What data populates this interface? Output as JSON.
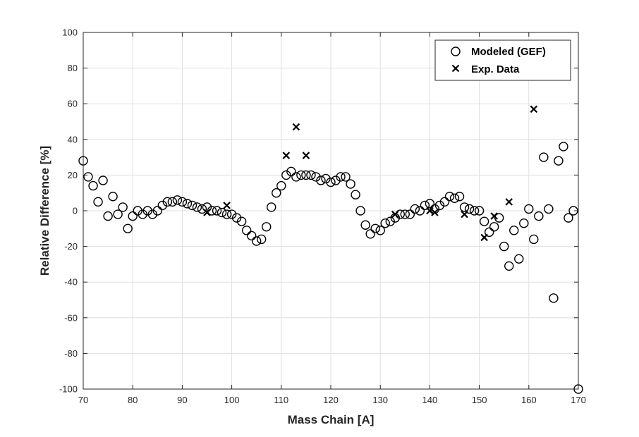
{
  "chart_data": {
    "type": "scatter",
    "title": "",
    "xlabel": "Mass Chain [A]",
    "ylabel": "Relative Difference [%]",
    "xlim": [
      70,
      170
    ],
    "ylim": [
      -100,
      100
    ],
    "xticks": [
      70,
      80,
      90,
      100,
      110,
      120,
      130,
      140,
      150,
      160,
      170
    ],
    "yticks": [
      100,
      80,
      60,
      40,
      20,
      0,
      -20,
      -40,
      -60,
      -80,
      -100
    ],
    "grid": true,
    "legend_position": "top-right",
    "series": [
      {
        "name": "Modeled (GEF)",
        "marker": "circle",
        "color": "#000000",
        "points": [
          [
            70,
            28
          ],
          [
            71,
            19
          ],
          [
            72,
            14
          ],
          [
            73,
            5
          ],
          [
            74,
            17
          ],
          [
            75,
            -3
          ],
          [
            76,
            8
          ],
          [
            77,
            -2
          ],
          [
            78,
            2
          ],
          [
            79,
            -10
          ],
          [
            80,
            -3
          ],
          [
            81,
            0
          ],
          [
            82,
            -2
          ],
          [
            83,
            0
          ],
          [
            84,
            -2
          ],
          [
            85,
            0
          ],
          [
            86,
            3
          ],
          [
            87,
            5
          ],
          [
            88,
            5
          ],
          [
            89,
            6
          ],
          [
            90,
            5
          ],
          [
            91,
            4
          ],
          [
            92,
            3
          ],
          [
            93,
            2
          ],
          [
            94,
            1
          ],
          [
            95,
            2
          ],
          [
            96,
            0
          ],
          [
            97,
            0
          ],
          [
            98,
            -1
          ],
          [
            99,
            -2
          ],
          [
            100,
            -2
          ],
          [
            101,
            -4
          ],
          [
            102,
            -6
          ],
          [
            103,
            -11
          ],
          [
            104,
            -14
          ],
          [
            105,
            -17
          ],
          [
            106,
            -16
          ],
          [
            107,
            -9
          ],
          [
            108,
            2
          ],
          [
            109,
            10
          ],
          [
            110,
            14
          ],
          [
            111,
            20
          ],
          [
            112,
            22
          ],
          [
            113,
            19
          ],
          [
            114,
            20
          ],
          [
            115,
            20
          ],
          [
            116,
            20
          ],
          [
            117,
            19
          ],
          [
            118,
            17
          ],
          [
            119,
            18
          ],
          [
            120,
            16
          ],
          [
            121,
            17
          ],
          [
            122,
            19
          ],
          [
            123,
            19
          ],
          [
            124,
            15
          ],
          [
            125,
            9
          ],
          [
            126,
            0
          ],
          [
            127,
            -8
          ],
          [
            128,
            -13
          ],
          [
            129,
            -10
          ],
          [
            130,
            -11
          ],
          [
            131,
            -7
          ],
          [
            132,
            -6
          ],
          [
            133,
            -4
          ],
          [
            134,
            -2
          ],
          [
            135,
            -2
          ],
          [
            136,
            -2
          ],
          [
            137,
            1
          ],
          [
            138,
            0
          ],
          [
            139,
            3
          ],
          [
            140,
            4
          ],
          [
            141,
            1
          ],
          [
            142,
            3
          ],
          [
            143,
            5
          ],
          [
            144,
            8
          ],
          [
            145,
            7
          ],
          [
            146,
            8
          ],
          [
            147,
            2
          ],
          [
            148,
            1
          ],
          [
            149,
            0
          ],
          [
            150,
            0
          ],
          [
            151,
            -6
          ],
          [
            152,
            -12
          ],
          [
            153,
            -9
          ],
          [
            154,
            -4
          ],
          [
            155,
            -20
          ],
          [
            156,
            -31
          ],
          [
            157,
            -11
          ],
          [
            158,
            -27
          ],
          [
            159,
            -7
          ],
          [
            160,
            1
          ],
          [
            161,
            -16
          ],
          [
            162,
            -3
          ],
          [
            163,
            30
          ],
          [
            164,
            1
          ],
          [
            165,
            -49
          ],
          [
            166,
            28
          ],
          [
            167,
            36
          ],
          [
            168,
            -4
          ],
          [
            169,
            0
          ],
          [
            170,
            -100
          ]
        ]
      },
      {
        "name": "Exp. Data",
        "marker": "x",
        "color": "#000000",
        "points": [
          [
            95,
            -1
          ],
          [
            99,
            3
          ],
          [
            111,
            31
          ],
          [
            113,
            47
          ],
          [
            115,
            31
          ],
          [
            133,
            -2
          ],
          [
            140,
            0
          ],
          [
            141,
            -1
          ],
          [
            147,
            -2
          ],
          [
            151,
            -15
          ],
          [
            153,
            -3
          ],
          [
            156,
            5
          ],
          [
            161,
            57
          ]
        ]
      }
    ]
  }
}
